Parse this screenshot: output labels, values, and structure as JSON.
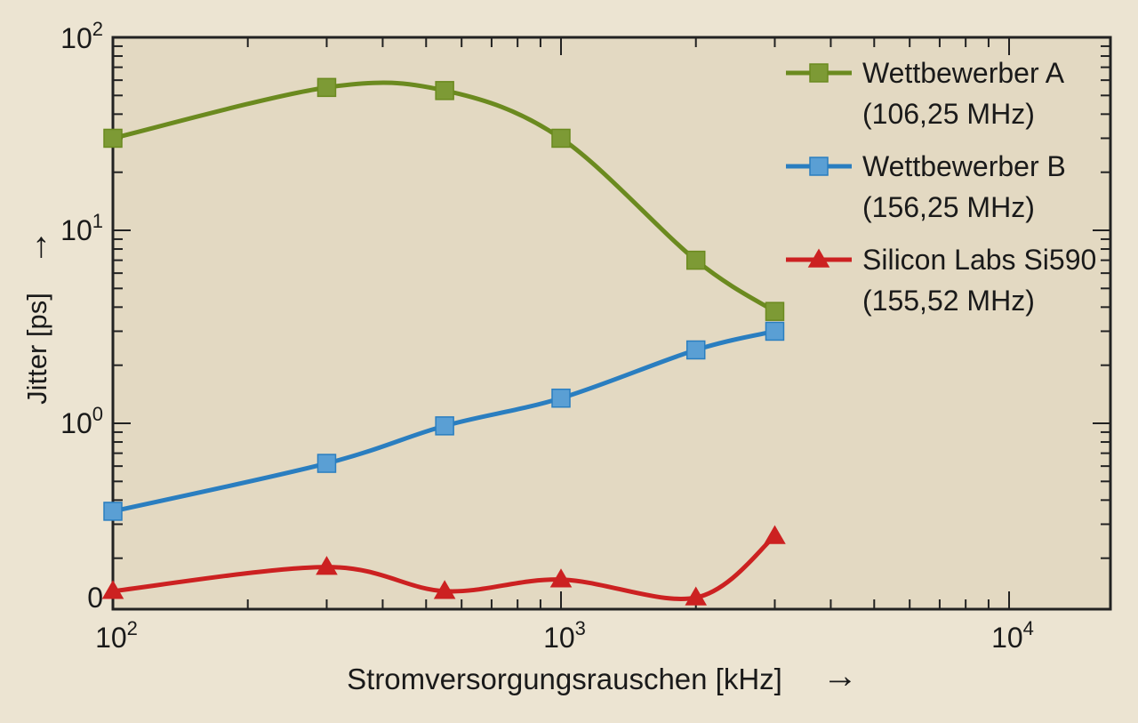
{
  "chart_data": {
    "type": "line",
    "xlabel": "Stromversorgungsrauschen [kHz]",
    "ylabel": "Jitter [ps]",
    "x_scale": "log",
    "y_scale": "log",
    "xlim": [
      100,
      25000
    ],
    "ylim": [
      0.1,
      100
    ],
    "x_ticks": [
      {
        "base": "10",
        "exp": "2",
        "value": 100
      },
      {
        "base": "10",
        "exp": "3",
        "value": 1000
      },
      {
        "base": "10",
        "exp": "4",
        "value": 10000
      }
    ],
    "y_ticks": [
      {
        "base": "10",
        "exp": "2",
        "value": 100
      },
      {
        "base": "10",
        "exp": "1",
        "value": 10
      },
      {
        "base": "10",
        "exp": "0",
        "value": 1
      },
      {
        "base": "0",
        "exp": "",
        "value": 0.1
      }
    ],
    "x_arrow": "→",
    "y_arrow": "→",
    "grid": false,
    "legend_position": "top-right",
    "series": [
      {
        "name": "Wettbewerber A",
        "sub": "(106,25 MHz)",
        "color": "#6b8a1f",
        "marker_color": "#7d9a35",
        "marker": "square",
        "points": [
          [
            100,
            30
          ],
          [
            300,
            55
          ],
          [
            550,
            53
          ],
          [
            1000,
            30
          ],
          [
            2000,
            7
          ],
          [
            3000,
            3.8
          ]
        ]
      },
      {
        "name": "Wettbewerber B",
        "sub": "(156,25 MHz)",
        "color": "#2a7ec0",
        "marker_color": "#5a9fd4",
        "marker": "square",
        "points": [
          [
            100,
            0.35
          ],
          [
            300,
            0.62
          ],
          [
            550,
            0.97
          ],
          [
            1000,
            1.35
          ],
          [
            2000,
            2.4
          ],
          [
            3000,
            3.0
          ]
        ]
      },
      {
        "name": "Silicon Labs Si590",
        "sub": "(155,52 MHz)",
        "color": "#cc2121",
        "marker_color": "#cc2121",
        "marker": "triangle",
        "points": [
          [
            100,
            0.135
          ],
          [
            300,
            0.18
          ],
          [
            550,
            0.135
          ],
          [
            1000,
            0.155
          ],
          [
            2000,
            0.125
          ],
          [
            3000,
            0.26
          ]
        ]
      }
    ]
  }
}
